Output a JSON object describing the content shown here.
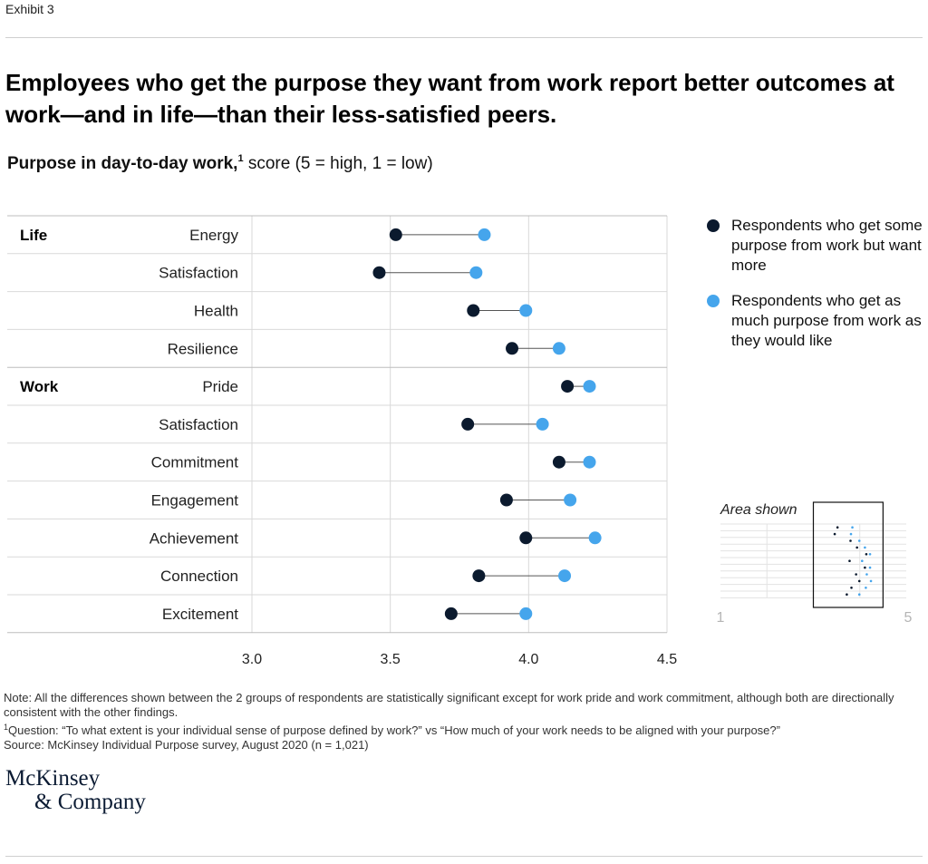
{
  "exhibit": "Exhibit 3",
  "headline": "Employees who get the purpose they want from work report better outcomes at work—and in life—than their less-satisfied peers.",
  "subtitle": {
    "bold": "Purpose in day-to-day work,",
    "sup": "1",
    "rest": " score (5 = high, 1 = low)"
  },
  "colors": {
    "dark": "#0b1a2e",
    "light": "#45a5ec",
    "connector": "#555555",
    "grid": "#d9d9d9"
  },
  "chart_data": {
    "type": "dumbbell",
    "xlim": [
      3.0,
      4.5
    ],
    "ticks": [
      "3.0",
      "3.5",
      "4.0",
      "4.5"
    ],
    "groups": [
      {
        "name": "Life",
        "start": 0
      },
      {
        "name": "Work",
        "start": 4
      }
    ],
    "categories": [
      "Energy",
      "Satisfaction",
      "Health",
      "Resilience",
      "Pride",
      "Satisfaction",
      "Commitment",
      "Engagement",
      "Achievement",
      "Connection",
      "Excitement"
    ],
    "series": [
      {
        "name": "Respondents who get some purpose from work but want more",
        "values": [
          3.52,
          3.46,
          3.8,
          3.94,
          4.14,
          3.78,
          4.11,
          3.92,
          3.99,
          3.82,
          3.72
        ]
      },
      {
        "name": "Respondents who get as much purpose from work as they would like",
        "values": [
          3.84,
          3.81,
          3.99,
          4.11,
          4.22,
          4.05,
          4.22,
          4.15,
          4.24,
          4.13,
          3.99
        ]
      }
    ]
  },
  "legend": {
    "dark": "Respondents who get some purpose from work but want more",
    "light": "Respondents who get as much purpose from work as they would like"
  },
  "minimap": {
    "title": "Area shown",
    "min_label": "1",
    "max_label": "5"
  },
  "notes": {
    "note": "Note: All the differences shown between the 2 groups of respondents are statistically significant except for work pride and work commitment, although both are directionally consistent with the other findings.",
    "question_sup": "1",
    "question": "Question: “To what extent is your individual sense of purpose defined by work?” vs “How much of your work needs to be aligned with your purpose?”",
    "source": "Source: McKinsey Individual Purpose survey, August 2020 (n = 1,021)"
  },
  "logo": {
    "line1": "McKinsey",
    "line2": "& Company"
  }
}
